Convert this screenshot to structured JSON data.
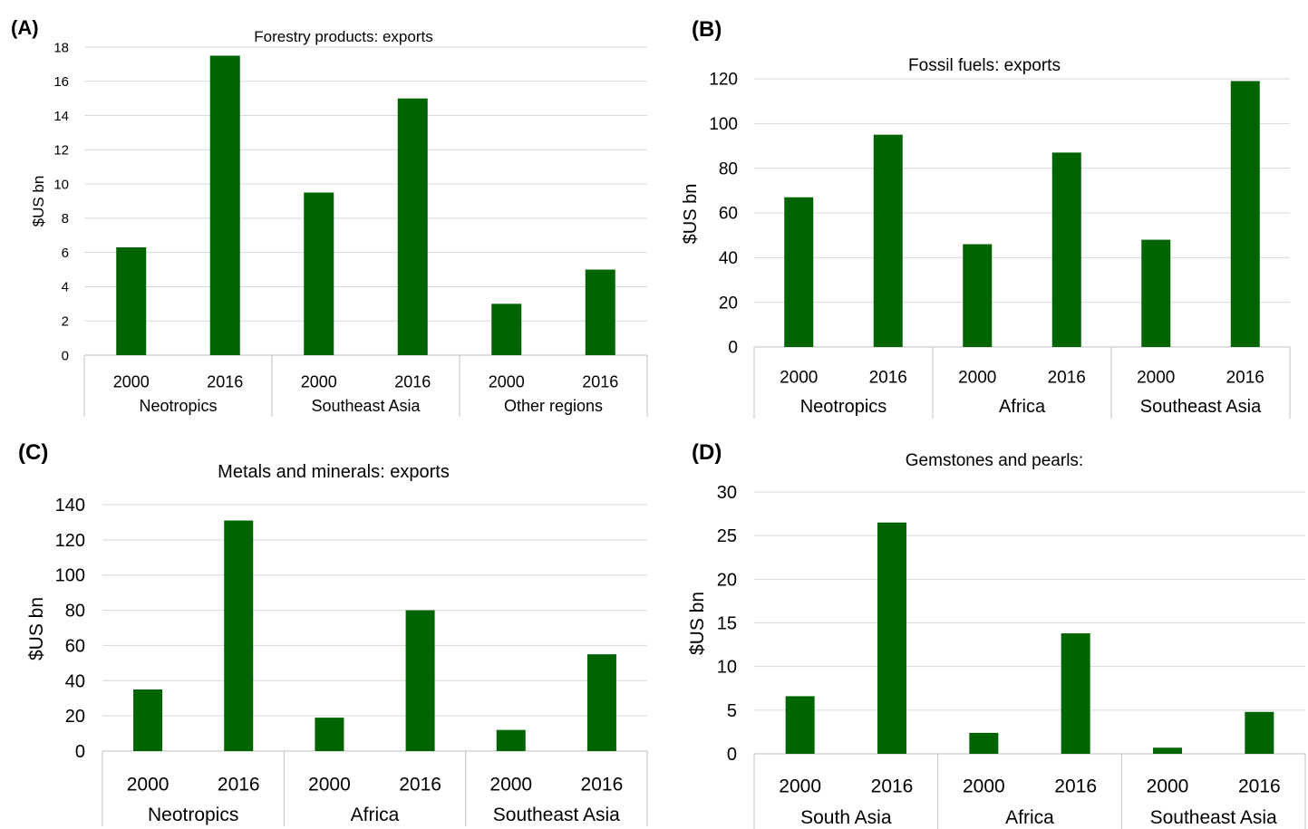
{
  "colors": {
    "bar": "#006400",
    "grid": "#d9d9d9",
    "axis": "#bfbfbf",
    "text": "#000000"
  },
  "chart_data": [
    {
      "panel_label": "(A)",
      "type": "bar",
      "title": "Forestry products: exports",
      "ylabel": "$US bn",
      "ylim": [
        0,
        18
      ],
      "yticks": [
        0,
        2,
        4,
        6,
        8,
        10,
        12,
        14,
        16,
        18
      ],
      "groups": [
        {
          "name": "Neotropics",
          "bars": [
            {
              "label": "2000",
              "value": 6.3
            },
            {
              "label": "2016",
              "value": 17.5
            }
          ]
        },
        {
          "name": "Southeast Asia",
          "bars": [
            {
              "label": "2000",
              "value": 9.5
            },
            {
              "label": "2016",
              "value": 15.0
            }
          ]
        },
        {
          "name": "Other regions",
          "bars": [
            {
              "label": "2000",
              "value": 3.0
            },
            {
              "label": "2016",
              "value": 5.0
            }
          ]
        }
      ],
      "grid": true,
      "legend": "none"
    },
    {
      "panel_label": "(B)",
      "type": "bar",
      "title": "Fossil fuels: exports",
      "ylabel": "$US bn",
      "ylim": [
        0,
        120
      ],
      "yticks": [
        0,
        20,
        40,
        60,
        80,
        100,
        120
      ],
      "groups": [
        {
          "name": "Neotropics",
          "bars": [
            {
              "label": "2000",
              "value": 67
            },
            {
              "label": "2016",
              "value": 95
            }
          ]
        },
        {
          "name": "Africa",
          "bars": [
            {
              "label": "2000",
              "value": 46
            },
            {
              "label": "2016",
              "value": 87
            }
          ]
        },
        {
          "name": "Southeast Asia",
          "bars": [
            {
              "label": "2000",
              "value": 48
            },
            {
              "label": "2016",
              "value": 119
            }
          ]
        }
      ],
      "grid": true,
      "legend": "none"
    },
    {
      "panel_label": "(C)",
      "type": "bar",
      "title": "Metals and minerals: exports",
      "ylabel": "$US bn",
      "ylim": [
        0,
        140
      ],
      "yticks": [
        0,
        20,
        40,
        60,
        80,
        100,
        120,
        140
      ],
      "groups": [
        {
          "name": "Neotropics",
          "bars": [
            {
              "label": "2000",
              "value": 35
            },
            {
              "label": "2016",
              "value": 131
            }
          ]
        },
        {
          "name": "Africa",
          "bars": [
            {
              "label": "2000",
              "value": 19
            },
            {
              "label": "2016",
              "value": 80
            }
          ]
        },
        {
          "name": "Southeast Asia",
          "bars": [
            {
              "label": "2000",
              "value": 12
            },
            {
              "label": "2016",
              "value": 55
            }
          ]
        }
      ],
      "grid": true,
      "legend": "none"
    },
    {
      "panel_label": "(D)",
      "type": "bar",
      "title": "Gemstones and pearls:",
      "ylabel": "$US bn",
      "ylim": [
        0,
        30
      ],
      "yticks": [
        0,
        5,
        10,
        15,
        20,
        25,
        30
      ],
      "groups": [
        {
          "name": "South Asia",
          "bars": [
            {
              "label": "2000",
              "value": 6.6
            },
            {
              "label": "2016",
              "value": 26.5
            }
          ]
        },
        {
          "name": "Africa",
          "bars": [
            {
              "label": "2000",
              "value": 2.4
            },
            {
              "label": "2016",
              "value": 13.8
            }
          ]
        },
        {
          "name": "Southeast Asia",
          "bars": [
            {
              "label": "2000",
              "value": 0.7
            },
            {
              "label": "2016",
              "value": 4.8
            }
          ]
        }
      ],
      "grid": true,
      "legend": "none"
    }
  ]
}
